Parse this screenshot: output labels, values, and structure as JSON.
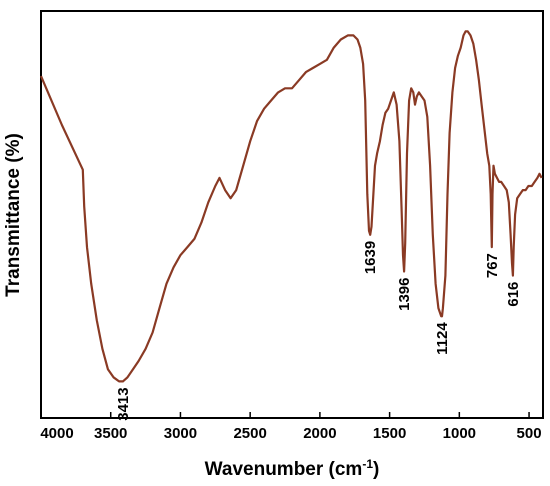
{
  "chart_data": {
    "type": "line",
    "title": "",
    "xlabel": "Wavenumber (cm",
    "xlabel_sup": "-1",
    "xlabel_end": ")",
    "ylabel": "Transmittance (%)",
    "xlim": [
      4000,
      400
    ],
    "x_reversed": true,
    "ylim": [
      0,
      100
    ],
    "y_ticks_shown": false,
    "grid": false,
    "x_ticks": [
      {
        "value": 4000,
        "label": "4000"
      },
      {
        "value": 3500,
        "label": "3500"
      },
      {
        "value": 3000,
        "label": "3000"
      },
      {
        "value": 2500,
        "label": "2500"
      },
      {
        "value": 2000,
        "label": "2000"
      },
      {
        "value": 1500,
        "label": "1500"
      },
      {
        "value": 1000,
        "label": "1000"
      },
      {
        "value": 500,
        "label": "500"
      }
    ],
    "series": [
      {
        "color": "#8a3a24",
        "points": [
          [
            4000,
            84
          ],
          [
            3850,
            72
          ],
          [
            3700,
            61
          ],
          [
            3690,
            52
          ],
          [
            3670,
            42
          ],
          [
            3640,
            33
          ],
          [
            3600,
            24
          ],
          [
            3560,
            17
          ],
          [
            3520,
            12
          ],
          [
            3480,
            10
          ],
          [
            3440,
            9
          ],
          [
            3413,
            9
          ],
          [
            3380,
            10
          ],
          [
            3340,
            12
          ],
          [
            3300,
            14
          ],
          [
            3250,
            17
          ],
          [
            3200,
            21
          ],
          [
            3150,
            27
          ],
          [
            3100,
            33
          ],
          [
            3050,
            37
          ],
          [
            3000,
            40
          ],
          [
            2950,
            42
          ],
          [
            2900,
            44
          ],
          [
            2850,
            48
          ],
          [
            2800,
            53
          ],
          [
            2750,
            57
          ],
          [
            2720,
            59
          ],
          [
            2680,
            56
          ],
          [
            2640,
            54
          ],
          [
            2600,
            56
          ],
          [
            2550,
            62
          ],
          [
            2500,
            68
          ],
          [
            2450,
            73
          ],
          [
            2400,
            76
          ],
          [
            2350,
            78
          ],
          [
            2300,
            80
          ],
          [
            2250,
            81
          ],
          [
            2200,
            81
          ],
          [
            2150,
            83
          ],
          [
            2100,
            85
          ],
          [
            2050,
            86
          ],
          [
            2000,
            87
          ],
          [
            1950,
            88
          ],
          [
            1900,
            91
          ],
          [
            1850,
            93
          ],
          [
            1800,
            94
          ],
          [
            1760,
            94
          ],
          [
            1730,
            93
          ],
          [
            1710,
            91
          ],
          [
            1690,
            87
          ],
          [
            1675,
            78
          ],
          [
            1660,
            55
          ],
          [
            1648,
            46
          ],
          [
            1639,
            45
          ],
          [
            1630,
            47
          ],
          [
            1620,
            53
          ],
          [
            1605,
            62
          ],
          [
            1590,
            65
          ],
          [
            1570,
            68
          ],
          [
            1550,
            72
          ],
          [
            1530,
            75
          ],
          [
            1510,
            76
          ],
          [
            1490,
            78
          ],
          [
            1470,
            80
          ],
          [
            1450,
            77
          ],
          [
            1430,
            68
          ],
          [
            1415,
            52
          ],
          [
            1404,
            40
          ],
          [
            1396,
            36
          ],
          [
            1388,
            43
          ],
          [
            1375,
            65
          ],
          [
            1360,
            78
          ],
          [
            1345,
            81
          ],
          [
            1330,
            80
          ],
          [
            1318,
            77
          ],
          [
            1305,
            79
          ],
          [
            1290,
            80
          ],
          [
            1270,
            79
          ],
          [
            1250,
            78
          ],
          [
            1230,
            74
          ],
          [
            1210,
            62
          ],
          [
            1190,
            45
          ],
          [
            1170,
            33
          ],
          [
            1150,
            27
          ],
          [
            1130,
            25
          ],
          [
            1124,
            25
          ],
          [
            1118,
            27
          ],
          [
            1100,
            35
          ],
          [
            1085,
            55
          ],
          [
            1070,
            70
          ],
          [
            1050,
            80
          ],
          [
            1030,
            86
          ],
          [
            1010,
            89
          ],
          [
            990,
            91
          ],
          [
            970,
            94
          ],
          [
            955,
            95
          ],
          [
            940,
            95
          ],
          [
            920,
            94
          ],
          [
            900,
            92
          ],
          [
            880,
            88
          ],
          [
            860,
            83
          ],
          [
            840,
            77
          ],
          [
            820,
            71
          ],
          [
            800,
            65
          ],
          [
            785,
            62
          ],
          [
            775,
            55
          ],
          [
            767,
            42
          ],
          [
            762,
            55
          ],
          [
            755,
            62
          ],
          [
            745,
            60
          ],
          [
            730,
            59
          ],
          [
            715,
            58
          ],
          [
            700,
            58
          ],
          [
            680,
            57
          ],
          [
            660,
            56
          ],
          [
            645,
            53
          ],
          [
            632,
            45
          ],
          [
            622,
            38
          ],
          [
            616,
            35
          ],
          [
            610,
            42
          ],
          [
            600,
            50
          ],
          [
            585,
            54
          ],
          [
            565,
            55
          ],
          [
            545,
            56
          ],
          [
            525,
            56
          ],
          [
            505,
            57
          ],
          [
            480,
            57
          ],
          [
            460,
            58
          ],
          [
            440,
            59
          ],
          [
            425,
            60
          ],
          [
            410,
            59
          ]
        ]
      }
    ],
    "annotations": [
      {
        "label": "3413",
        "x": 3413,
        "y": 9
      },
      {
        "label": "1639",
        "x": 1639,
        "y": 45
      },
      {
        "label": "1396",
        "x": 1396,
        "y": 36
      },
      {
        "label": "1124",
        "x": 1124,
        "y": 25
      },
      {
        "label": "767",
        "x": 767,
        "y": 42
      },
      {
        "label": "616",
        "x": 616,
        "y": 35
      }
    ]
  }
}
